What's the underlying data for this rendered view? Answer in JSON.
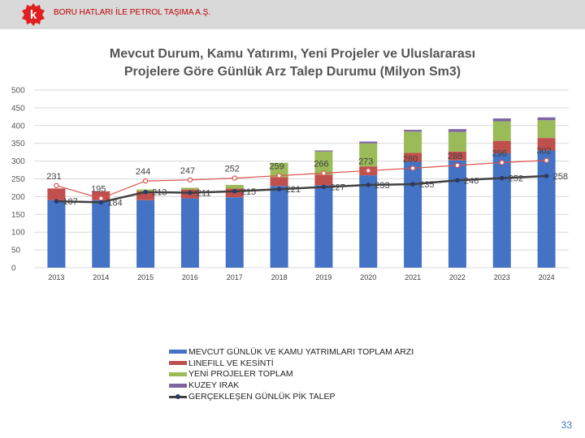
{
  "header": {
    "company": "BORU HATLARI İLE PETROL TAŞIMA A.Ş.",
    "logo_letter": "k"
  },
  "page_number": "33",
  "colors": {
    "blue": "#4472c4",
    "red": "#c0504d",
    "green": "#9bbb59",
    "purple": "#8064a2",
    "line": "#404040",
    "top_line": "#d9534f"
  },
  "chart_data": {
    "type": "bar",
    "title": "Mevcut Durum, Kamu Yatırımı, Yeni Projeler ve Uluslararası Projelere Göre Günlük Arz Talep Durumu (Milyon Sm3)",
    "title_line1": "Mevcut Durum, Kamu Yatırımı, Yeni Projeler ve Uluslararası",
    "title_line2": "Projelere Göre Günlük Arz Talep Durumu (Milyon Sm3)",
    "categories": [
      "2013",
      "2014",
      "2015",
      "2016",
      "2017",
      "2018",
      "2019",
      "2020",
      "2021",
      "2022",
      "2023",
      "2024"
    ],
    "ylim": [
      0,
      500
    ],
    "yticks": [
      "0",
      "50",
      "100",
      "150",
      "200",
      "250",
      "300",
      "350",
      "400",
      "450",
      "500"
    ],
    "grid": true,
    "legend_position": "bottom",
    "series": [
      {
        "name": "MEVCUT GÜNLÜK VE KAMU YATRIMLARI TOPLAM ARZI",
        "values": [
          190,
          190,
          190,
          195,
          198,
          230,
          232,
          260,
          298,
          302,
          322,
          330
        ]
      },
      {
        "name": "LINEFILL VE KESİNTİ",
        "values": [
          33,
          25,
          25,
          25,
          25,
          25,
          30,
          25,
          25,
          25,
          35,
          35
        ]
      },
      {
        "name": "YENİ PROJELER TOPLAM",
        "values": [
          0,
          0,
          5,
          5,
          10,
          40,
          65,
          65,
          60,
          55,
          55,
          50
        ]
      },
      {
        "name": "KUZEY IRAK",
        "values": [
          0,
          0,
          0,
          0,
          0,
          0,
          3,
          5,
          5,
          8,
          8,
          8
        ]
      }
    ],
    "total_line": {
      "values": [
        231,
        195,
        244,
        247,
        252,
        259,
        266,
        273,
        280,
        288,
        296,
        302
      ]
    },
    "total_labels": [
      "231",
      "195",
      "244",
      "247",
      "252",
      "259",
      "266",
      "273",
      "280",
      "288",
      "296",
      "302"
    ],
    "peak_demand": {
      "name": "GERÇEKLEŞEN GÜNLÜK PİK TALEP",
      "values": [
        187,
        184,
        213,
        211,
        215,
        221,
        227,
        233,
        235,
        246,
        252,
        258
      ]
    },
    "peak_labels": [
      "187",
      "184",
      "213",
      "211",
      "215",
      "221",
      "227",
      "233",
      "235",
      "246",
      "252",
      "258"
    ]
  }
}
